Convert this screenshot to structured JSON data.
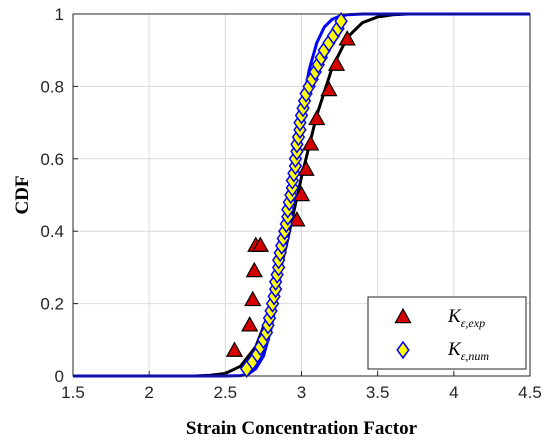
{
  "chart_data": {
    "type": "scatter",
    "xlabel": "Strain Concentration Factor",
    "ylabel": "CDF",
    "xlim": [
      1.5,
      4.5
    ],
    "ylim": [
      0,
      1
    ],
    "xticks": [
      "1.5",
      "2",
      "2.5",
      "3",
      "3.5",
      "4",
      "4.5"
    ],
    "yticks": [
      "0",
      "0.2",
      "0.4",
      "0.6",
      "0.8",
      "1"
    ],
    "grid": true,
    "legend_position": "bottom-right",
    "series": [
      {
        "name": "K_{ε,exp}",
        "kind": "scatter",
        "marker": "triangle",
        "color": "#d40000",
        "edge_color": "#000000",
        "x": [
          2.56,
          2.66,
          2.68,
          2.69,
          2.7,
          2.73,
          2.94,
          2.97,
          3.0,
          3.03,
          3.06,
          3.1,
          3.18,
          3.23,
          3.3
        ],
        "y": [
          0.07,
          0.14,
          0.21,
          0.29,
          0.36,
          0.36,
          0.43,
          0.43,
          0.5,
          0.57,
          0.64,
          0.71,
          0.79,
          0.86,
          0.93
        ]
      },
      {
        "name": "K_{ε,num}",
        "kind": "scatter",
        "marker": "diamond",
        "color": "#ffff00",
        "edge_color": "#0000ff",
        "x": [
          2.64,
          2.68,
          2.71,
          2.73,
          2.75,
          2.77,
          2.78,
          2.79,
          2.8,
          2.81,
          2.82,
          2.83,
          2.83,
          2.84,
          2.85,
          2.85,
          2.86,
          2.87,
          2.88,
          2.89,
          2.9,
          2.91,
          2.91,
          2.92,
          2.93,
          2.94,
          2.94,
          2.95,
          2.96,
          2.96,
          2.97,
          2.97,
          2.98,
          2.99,
          2.99,
          3.0,
          3.01,
          3.02,
          3.03,
          3.05,
          3.07,
          3.09,
          3.11,
          3.13,
          3.15,
          3.18,
          3.21,
          3.24,
          3.26
        ],
        "y": [
          0.02,
          0.04,
          0.06,
          0.08,
          0.1,
          0.12,
          0.14,
          0.16,
          0.18,
          0.2,
          0.22,
          0.24,
          0.26,
          0.28,
          0.3,
          0.32,
          0.34,
          0.36,
          0.38,
          0.4,
          0.42,
          0.44,
          0.46,
          0.48,
          0.5,
          0.52,
          0.54,
          0.56,
          0.58,
          0.6,
          0.62,
          0.64,
          0.66,
          0.68,
          0.7,
          0.72,
          0.74,
          0.76,
          0.78,
          0.8,
          0.82,
          0.84,
          0.86,
          0.88,
          0.9,
          0.92,
          0.94,
          0.96,
          0.98
        ]
      },
      {
        "kind": "line",
        "color": "#000000",
        "x": [
          1.5,
          2.3,
          2.4,
          2.5,
          2.6,
          2.7,
          2.8,
          2.9,
          3.0,
          3.1,
          3.2,
          3.3,
          3.4,
          3.5,
          3.6,
          3.7,
          3.8,
          4.5
        ],
        "y": [
          0.0,
          0.0,
          0.002,
          0.007,
          0.027,
          0.081,
          0.19,
          0.36,
          0.55,
          0.72,
          0.85,
          0.935,
          0.976,
          0.992,
          0.998,
          1.0,
          1.0,
          1.0
        ]
      },
      {
        "kind": "line",
        "color": "#0000ff",
        "x": [
          1.5,
          2.5,
          2.6,
          2.65,
          2.7,
          2.75,
          2.8,
          2.85,
          2.9,
          2.95,
          3.0,
          3.05,
          3.1,
          3.15,
          3.2,
          3.25,
          3.3,
          3.4,
          3.5,
          4.5
        ],
        "y": [
          0.0,
          0.0,
          0.001,
          0.005,
          0.02,
          0.055,
          0.13,
          0.25,
          0.41,
          0.58,
          0.73,
          0.845,
          0.92,
          0.964,
          0.985,
          0.994,
          0.998,
          1.0,
          1.0,
          1.0
        ]
      }
    ],
    "legend": [
      {
        "base": "K",
        "sub": "ε,exp",
        "marker": "triangle"
      },
      {
        "base": "K",
        "sub": "ε,num",
        "marker": "diamond"
      }
    ]
  }
}
